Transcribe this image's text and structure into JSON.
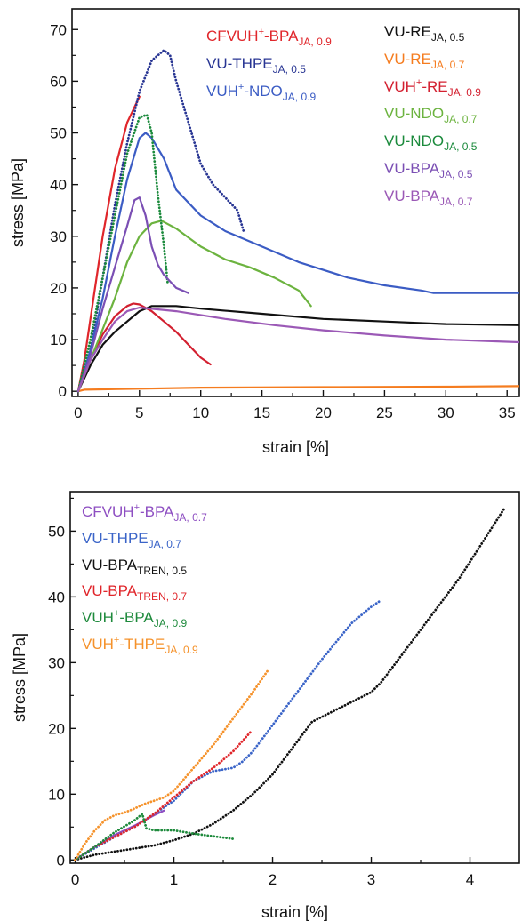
{
  "chart_data": [
    {
      "type": "line",
      "xlabel": "strain [%]",
      "ylabel": "stress [MPa]",
      "xlim": [
        -0.5,
        36
      ],
      "ylim": [
        -1,
        74
      ],
      "xticks": [
        "0",
        "5",
        "10",
        "15",
        "20",
        "25",
        "30",
        "35"
      ],
      "yticks": [
        "0",
        "10",
        "20",
        "30",
        "40",
        "50",
        "60",
        "70"
      ],
      "legend_position": "top-right",
      "series": [
        {
          "name": "CFVUH⁺-BPA",
          "base": "CFVUH",
          "sup": "+",
          "mid": "-BPA",
          "sub": "JA, 0.9",
          "color": "#e0262b",
          "style": "solid",
          "x": [
            0,
            0.5,
            1,
            2,
            3,
            4,
            5
          ],
          "y": [
            0,
            6,
            14,
            30,
            43,
            52,
            57
          ]
        },
        {
          "name": "VU-THPE",
          "base": "VU-THPE",
          "sup": "",
          "mid": "",
          "sub": "JA, 0.5",
          "color": "#283593",
          "style": "dotted",
          "x": [
            0,
            1,
            2,
            3,
            4,
            5,
            6,
            7,
            7.5,
            8,
            9,
            10,
            11,
            12,
            13,
            13.5
          ],
          "y": [
            0,
            8,
            22,
            36,
            48,
            58,
            64,
            66,
            65,
            60,
            52,
            44,
            40,
            37.5,
            35,
            31
          ]
        },
        {
          "name": "VUH⁺-NDO",
          "base": "VUH",
          "sup": "+",
          "mid": "-NDO",
          "sub": "JA, 0.9",
          "color": "#3b5cc4",
          "style": "solid",
          "x": [
            0,
            1,
            2,
            3,
            4,
            5,
            5.5,
            6,
            7,
            8,
            10,
            12,
            15,
            18,
            22,
            25,
            28,
            29,
            32,
            36
          ],
          "y": [
            0,
            8,
            18,
            30,
            41,
            49,
            50,
            49,
            45,
            39,
            34,
            31,
            28,
            25,
            22,
            20.5,
            19.5,
            19,
            19,
            19
          ]
        },
        {
          "name": "VU-RE",
          "base": "VU-RE",
          "sup": "",
          "mid": "",
          "sub": "JA, 0.5",
          "color": "#111111",
          "style": "solid",
          "x": [
            0,
            1,
            2,
            3,
            4,
            5,
            6,
            8,
            10,
            15,
            20,
            25,
            30,
            36
          ],
          "y": [
            0,
            5,
            9,
            11.5,
            13.5,
            15.5,
            16.5,
            16.5,
            16,
            15,
            14,
            13.5,
            13,
            12.8
          ]
        },
        {
          "name": "VU-RE",
          "base": "VU-RE",
          "sup": "",
          "mid": "",
          "sub": "JA, 0.7",
          "color": "#f57c1f",
          "style": "solid",
          "x": [
            0,
            0.5,
            5,
            10,
            20,
            30,
            36
          ],
          "y": [
            0,
            0.3,
            0.5,
            0.7,
            0.8,
            0.9,
            1
          ]
        },
        {
          "name": "VUH⁺-RE",
          "base": "VUH",
          "sup": "+",
          "mid": "-RE",
          "sub": "JA, 0.9",
          "color": "#d32030",
          "style": "solid",
          "x": [
            0,
            1,
            2,
            3,
            4,
            4.5,
            5,
            6,
            7,
            8,
            9,
            10,
            10.8
          ],
          "y": [
            0,
            6,
            11,
            14.5,
            16.5,
            17,
            16.8,
            15.5,
            13.5,
            11.5,
            9,
            6.5,
            5.2
          ]
        },
        {
          "name": "VU-NDO",
          "base": "VU-NDO",
          "sup": "",
          "mid": "",
          "sub": "JA, 0.7",
          "color": "#6cb33f",
          "style": "solid",
          "x": [
            0,
            1,
            2,
            3,
            4,
            5,
            6,
            6.8,
            8,
            10,
            12,
            14,
            16,
            18,
            19
          ],
          "y": [
            0,
            6,
            12,
            18,
            25,
            30,
            32.5,
            33,
            31.5,
            28,
            25.5,
            24,
            22,
            19.5,
            16.5
          ]
        },
        {
          "name": "VU-NDO",
          "base": "VU-NDO",
          "sup": "",
          "mid": "",
          "sub": "JA, 0.5",
          "color": "#1b8a3c",
          "style": "dotted",
          "x": [
            0,
            1,
            2,
            3,
            4,
            5,
            5.6,
            6,
            6.5,
            7,
            7.3
          ],
          "y": [
            0,
            10,
            22,
            34,
            46,
            53,
            53.5,
            50,
            38,
            28,
            21
          ]
        },
        {
          "name": "VU-BPA",
          "base": "VU-BPA",
          "sup": "",
          "mid": "",
          "sub": "JA, 0.5",
          "color": "#7b4fb4",
          "style": "solid",
          "x": [
            0,
            1,
            2,
            3,
            4,
            4.6,
            5,
            5.5,
            6,
            6.5,
            7,
            8,
            9
          ],
          "y": [
            0,
            7,
            16,
            24,
            32,
            37,
            37.5,
            34,
            28,
            24.5,
            22.5,
            20,
            19
          ]
        },
        {
          "name": "VU-BPA",
          "base": "VU-BPA",
          "sup": "",
          "mid": "",
          "sub": "JA, 0.7",
          "color": "#9b59b6",
          "style": "solid",
          "x": [
            0,
            1,
            2,
            3,
            4,
            5,
            8,
            12,
            16,
            20,
            25,
            30,
            36
          ],
          "y": [
            0,
            6,
            10,
            13.5,
            15.5,
            16.2,
            15.5,
            14,
            12.8,
            11.8,
            10.8,
            10,
            9.5
          ]
        }
      ]
    },
    {
      "type": "line",
      "xlabel": "strain [%]",
      "ylabel": "stress [MPa]",
      "xlim": [
        -0.05,
        4.5
      ],
      "ylim": [
        -0.5,
        56
      ],
      "xticks": [
        "0",
        "1",
        "2",
        "3",
        "4"
      ],
      "yticks": [
        "0",
        "10",
        "20",
        "30",
        "40",
        "50"
      ],
      "legend_position": "top-left",
      "series": [
        {
          "name": "CFVUH⁺-BPA",
          "base": "CFVUH",
          "sup": "+",
          "mid": "-BPA",
          "sub": "JA, 0.7",
          "color": "#8e4fc2",
          "style": "solid",
          "x": [
            0,
            0.2,
            0.4,
            0.6,
            0.8,
            0.9
          ],
          "y": [
            0,
            2,
            3.8,
            5.2,
            6.8,
            7.5
          ]
        },
        {
          "name": "VU-THPE",
          "base": "VU-THPE",
          "sup": "",
          "mid": "",
          "sub": "JA, 0.7",
          "color": "#3a64c8",
          "style": "dotted",
          "x": [
            0,
            0.2,
            0.4,
            0.6,
            0.8,
            1.0,
            1.2,
            1.4,
            1.6,
            1.7,
            1.8,
            2.0,
            2.2,
            2.5,
            2.8,
            3.0,
            3.1
          ],
          "y": [
            0,
            1.8,
            3.5,
            5,
            7,
            9,
            12,
            13.5,
            14,
            15,
            16.5,
            20.5,
            24.5,
            30.5,
            36,
            38.5,
            39.5
          ]
        },
        {
          "name": "VU-BPA",
          "base": "VU-BPA",
          "sup": "",
          "mid": "",
          "sub": "TREN, 0.5",
          "color": "#111111",
          "style": "dotted",
          "x": [
            0,
            0.2,
            0.5,
            0.8,
            1.0,
            1.2,
            1.4,
            1.6,
            1.8,
            2.0,
            2.2,
            2.4,
            2.6,
            2.8,
            3.0,
            3.1,
            3.3,
            3.6,
            3.9,
            4.2,
            4.35
          ],
          "y": [
            0,
            0.8,
            1.5,
            2.2,
            3,
            4,
            5.5,
            7.5,
            10,
            13,
            17,
            21,
            22.5,
            24,
            25.5,
            27,
            31,
            37,
            43,
            50,
            53.5
          ]
        },
        {
          "name": "VU-BPA",
          "base": "VU-BPA",
          "sup": "",
          "mid": "",
          "sub": "TREN, 0.7",
          "color": "#e0262b",
          "style": "dotted",
          "x": [
            0,
            0.2,
            0.4,
            0.6,
            0.8,
            1.0,
            1.2,
            1.4,
            1.6,
            1.78
          ],
          "y": [
            0,
            2,
            3.5,
            5,
            7,
            9.5,
            12,
            14,
            16.5,
            19.5
          ]
        },
        {
          "name": "VUH⁺-BPA",
          "base": "VUH",
          "sup": "+",
          "mid": "-BPA",
          "sub": "JA, 0.9",
          "color": "#1e8a3c",
          "style": "dotted",
          "x": [
            0,
            0.2,
            0.4,
            0.6,
            0.68,
            0.72,
            0.8,
            1.0,
            1.2,
            1.4,
            1.6
          ],
          "y": [
            0,
            2,
            4.2,
            6,
            7,
            4.8,
            4.5,
            4.5,
            4,
            3.6,
            3.2
          ]
        },
        {
          "name": "VUH⁺-THPE",
          "base": "VUH",
          "sup": "+",
          "mid": "-THPE",
          "sub": "JA, 0.9",
          "color": "#f5922b",
          "style": "dotted",
          "x": [
            0,
            0.1,
            0.2,
            0.3,
            0.4,
            0.5,
            0.6,
            0.7,
            0.8,
            0.9,
            1.0,
            1.2,
            1.4,
            1.6,
            1.8,
            1.96
          ],
          "y": [
            0,
            2.5,
            4.5,
            6,
            6.8,
            7.2,
            7.8,
            8.5,
            9,
            9.5,
            10.5,
            14,
            17.5,
            21.5,
            25.5,
            29
          ]
        }
      ]
    }
  ]
}
